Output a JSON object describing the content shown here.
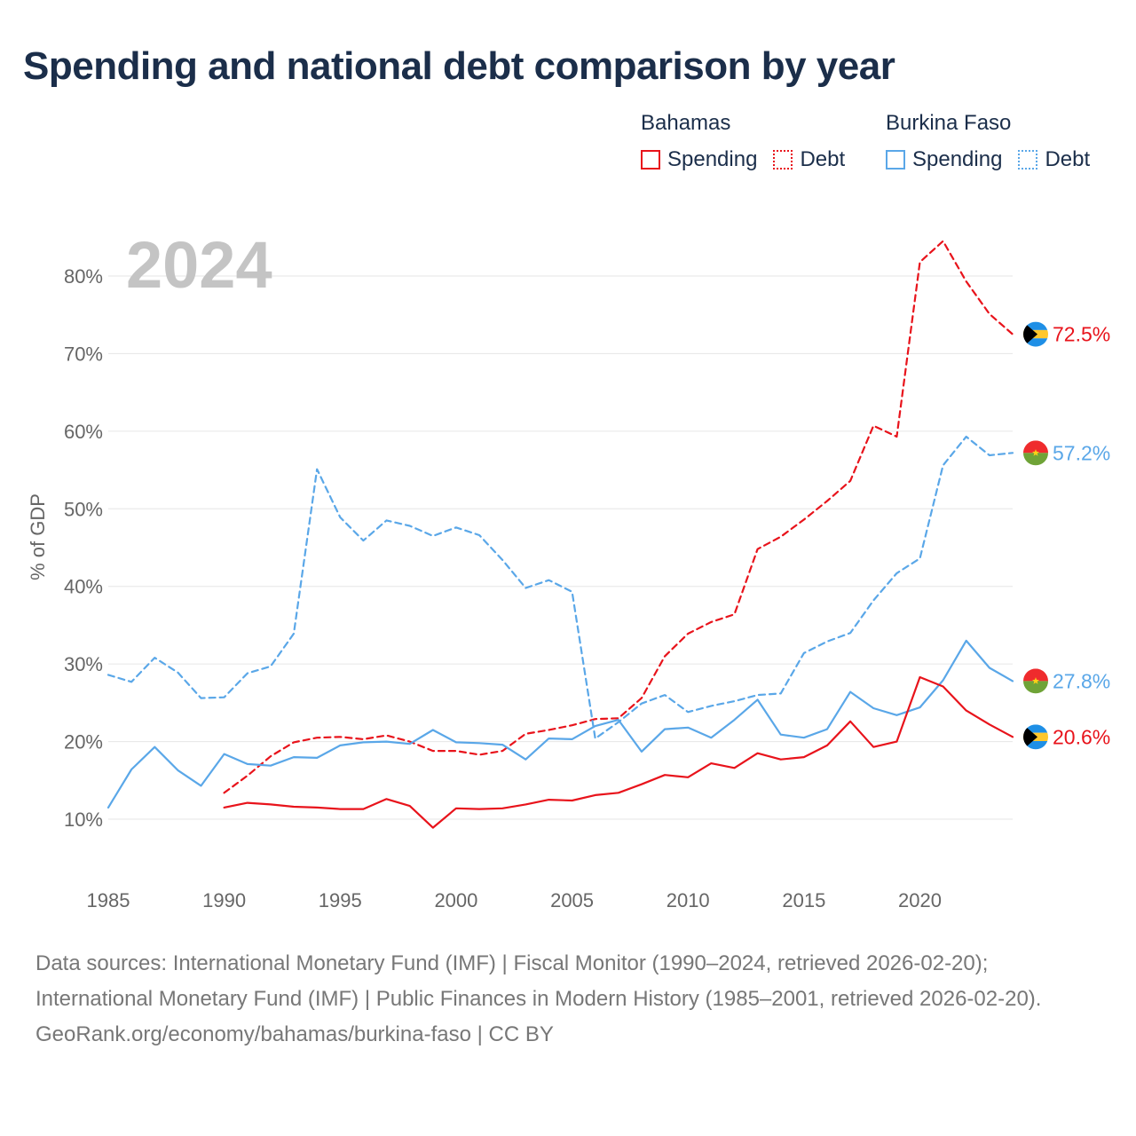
{
  "title": "Spending and national debt comparison by year",
  "legend": {
    "groups": [
      {
        "country": "Bahamas",
        "spending_label": "Spending",
        "debt_label": "Debt",
        "color": "#e8131b"
      },
      {
        "country": "Burkina Faso",
        "spending_label": "Spending",
        "debt_label": "Debt",
        "color": "#5aa7e8"
      }
    ]
  },
  "footer": {
    "sources": "Data sources: International Monetary Fund (IMF) | Fiscal Monitor (1990–2024, retrieved 2026-02-20); International Monetary Fund (IMF) | Public Finances in Modern History (1985–2001, retrieved 2026-02-20).",
    "credit": "GeoRank.org/economy/bahamas/burkina-faso | CC BY"
  },
  "chart_data": {
    "type": "line",
    "year_label": "2024",
    "ylabel": "% of GDP",
    "xlim": [
      1985,
      2024
    ],
    "ylim": [
      10,
      85
    ],
    "x_ticks": [
      1985,
      1990,
      1995,
      2000,
      2005,
      2010,
      2015,
      2020
    ],
    "x_tick_labels": [
      "1985",
      "1990",
      "1995",
      "2000",
      "2005",
      "2010",
      "2015",
      "2020"
    ],
    "y_ticks": [
      10,
      20,
      30,
      40,
      50,
      60,
      70,
      80
    ],
    "y_tick_labels": [
      "10%",
      "20%",
      "30%",
      "40%",
      "50%",
      "60%",
      "70%",
      "80%"
    ],
    "grid": true,
    "series": [
      {
        "name": "Bahamas Debt",
        "country": "Bahamas",
        "metric": "Debt",
        "color": "#e8131b",
        "style": "dashed",
        "flag": "bahamas",
        "end_label": "72.5%",
        "x": [
          1990,
          1991,
          1992,
          1993,
          1994,
          1995,
          1996,
          1997,
          1998,
          1999,
          2000,
          2001,
          2002,
          2003,
          2004,
          2005,
          2006,
          2007,
          2008,
          2009,
          2010,
          2011,
          2012,
          2013,
          2014,
          2015,
          2016,
          2017,
          2018,
          2019,
          2020,
          2021,
          2022,
          2023,
          2024
        ],
        "values": [
          13.4,
          15.6,
          18.1,
          19.9,
          20.5,
          20.6,
          20.3,
          20.8,
          20.0,
          18.8,
          18.8,
          18.3,
          18.8,
          21.0,
          21.5,
          22.1,
          22.9,
          23.0,
          25.6,
          31.0,
          33.9,
          35.4,
          36.4,
          44.8,
          46.4,
          48.6,
          51.0,
          53.6,
          60.7,
          59.3,
          81.8,
          84.5,
          79.3,
          75.1,
          72.5
        ]
      },
      {
        "name": "Burkina Faso Debt",
        "country": "Burkina Faso",
        "metric": "Debt",
        "color": "#5aa7e8",
        "style": "dashed",
        "flag": "burkina-faso",
        "end_label": "57.2%",
        "x": [
          1985,
          1986,
          1987,
          1988,
          1989,
          1990,
          1991,
          1992,
          1993,
          1994,
          1995,
          1996,
          1997,
          1998,
          1999,
          2000,
          2001,
          2002,
          2003,
          2004,
          2005,
          2006,
          2007,
          2008,
          2009,
          2010,
          2011,
          2012,
          2013,
          2014,
          2015,
          2016,
          2017,
          2018,
          2019,
          2020,
          2021,
          2022,
          2023,
          2024
        ],
        "values": [
          28.6,
          27.7,
          30.8,
          28.9,
          25.6,
          25.7,
          28.8,
          29.7,
          33.9,
          55.1,
          48.9,
          45.9,
          48.5,
          47.8,
          46.5,
          47.6,
          46.6,
          43.4,
          39.8,
          40.8,
          39.3,
          20.4,
          22.5,
          24.9,
          26.0,
          23.8,
          24.6,
          25.2,
          26.0,
          26.2,
          31.4,
          32.9,
          34.0,
          38.2,
          41.7,
          43.6,
          55.6,
          59.3,
          56.9,
          57.2
        ]
      },
      {
        "name": "Burkina Faso Spending",
        "country": "Burkina Faso",
        "metric": "Spending",
        "color": "#5aa7e8",
        "style": "solid",
        "flag": "burkina-faso",
        "end_label": "27.8%",
        "x": [
          1985,
          1986,
          1987,
          1988,
          1989,
          1990,
          1991,
          1992,
          1993,
          1994,
          1995,
          1996,
          1997,
          1998,
          1999,
          2000,
          2001,
          2002,
          2003,
          2004,
          2005,
          2006,
          2007,
          2008,
          2009,
          2010,
          2011,
          2012,
          2013,
          2014,
          2015,
          2016,
          2017,
          2018,
          2019,
          2020,
          2021,
          2022,
          2023,
          2024
        ],
        "values": [
          11.5,
          16.4,
          19.3,
          16.3,
          14.3,
          18.4,
          17.1,
          16.9,
          18.0,
          17.9,
          19.5,
          19.9,
          20.0,
          19.7,
          21.5,
          19.9,
          19.8,
          19.6,
          17.7,
          20.4,
          20.3,
          22.0,
          22.8,
          18.7,
          21.6,
          21.8,
          20.5,
          22.8,
          25.4,
          20.9,
          20.5,
          21.6,
          26.4,
          24.3,
          23.4,
          24.4,
          27.9,
          33.0,
          29.5,
          27.8
        ]
      },
      {
        "name": "Bahamas Spending",
        "country": "Bahamas",
        "metric": "Spending",
        "color": "#e8131b",
        "style": "solid",
        "flag": "bahamas",
        "end_label": "20.6%",
        "x": [
          1990,
          1991,
          1992,
          1993,
          1994,
          1995,
          1996,
          1997,
          1998,
          1999,
          2000,
          2001,
          2002,
          2003,
          2004,
          2005,
          2006,
          2007,
          2008,
          2009,
          2010,
          2011,
          2012,
          2013,
          2014,
          2015,
          2016,
          2017,
          2018,
          2019,
          2020,
          2021,
          2022,
          2023,
          2024
        ],
        "values": [
          11.5,
          12.1,
          11.9,
          11.6,
          11.5,
          11.3,
          11.3,
          12.6,
          11.7,
          8.9,
          11.4,
          11.3,
          11.4,
          11.9,
          12.5,
          12.4,
          13.1,
          13.4,
          14.5,
          15.7,
          15.4,
          17.2,
          16.6,
          18.5,
          17.7,
          18.0,
          19.5,
          22.6,
          19.3,
          20.0,
          28.3,
          27.1,
          24.0,
          22.2,
          20.6
        ]
      }
    ]
  }
}
